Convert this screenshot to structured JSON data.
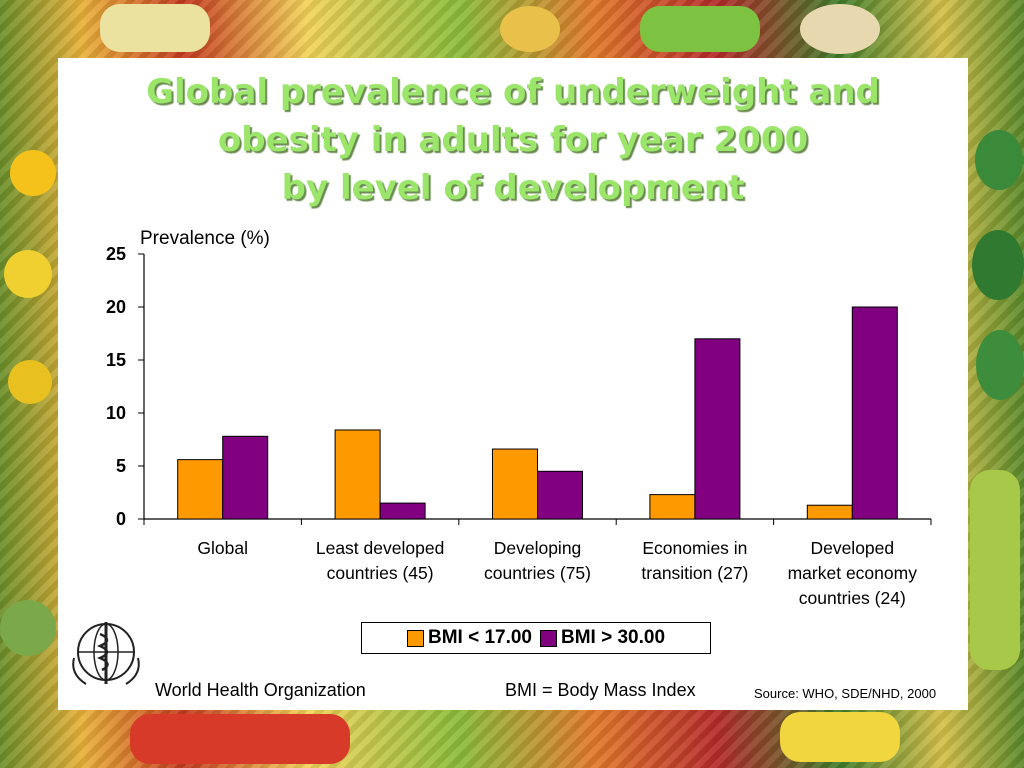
{
  "slide": {
    "title_lines": [
      "Global  prevalence of underweight and",
      "obesity in adults for year 2000",
      "by level of development"
    ],
    "footer_org": "World Health Organization",
    "footer_bmi": "BMI = Body Mass Index",
    "footer_source": "Source: WHO, SDE/NHD, 2000"
  },
  "chart_data": {
    "type": "bar",
    "ylabel": "Prevalence (%)",
    "ylim": [
      0,
      25
    ],
    "yticks": [
      "0",
      "5",
      "10",
      "15",
      "20",
      "25"
    ],
    "categories": [
      [
        "Global"
      ],
      [
        "Least developed",
        "countries (45)"
      ],
      [
        "Developing",
        "countries (75)"
      ],
      [
        "Economies in",
        "transition (27)"
      ],
      [
        "Developed",
        "market economy",
        "countries (24)"
      ]
    ],
    "series": [
      {
        "name": "BMI < 17.00",
        "color": "#ff9900",
        "values": [
          5.6,
          8.4,
          6.6,
          2.3,
          1.3
        ]
      },
      {
        "name": "BMI  > 30.00",
        "color": "#800080",
        "values": [
          7.8,
          1.5,
          4.5,
          17.0,
          20.0
        ]
      }
    ],
    "legend_position": "bottom",
    "grid": false
  }
}
